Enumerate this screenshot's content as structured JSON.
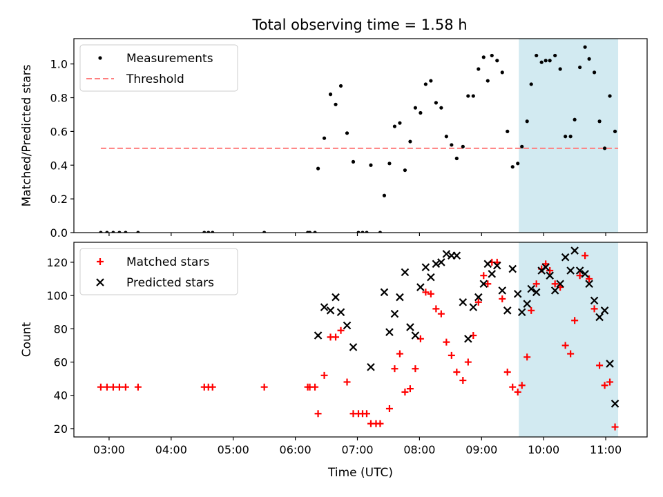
{
  "figure": {
    "title": "Total observing time = 1.58 h"
  },
  "chart_data": [
    {
      "type": "scatter",
      "ylabel": "Matched/Predicted stars",
      "xlim": [
        "02:26",
        "11:40"
      ],
      "ylim": [
        0,
        1.15
      ],
      "xticks": [
        "03:00",
        "04:00",
        "05:00",
        "06:00",
        "07:00",
        "08:00",
        "09:00",
        "10:00",
        "11:00"
      ],
      "yticks": [
        "0.0",
        "0.2",
        "0.4",
        "0.6",
        "0.8",
        "1.0"
      ],
      "legend": {
        "position": "top-left",
        "entries": [
          "Measurements",
          "Threshold"
        ]
      },
      "shaded_interval": {
        "from": "09:36",
        "to": "11:12",
        "color": "#add8e6"
      },
      "threshold": {
        "name": "Threshold",
        "value": 0.5,
        "from": "02:52",
        "to": "11:12",
        "color": "#ff7f7f",
        "style": "dashed"
      },
      "series": [
        {
          "name": "Measurements",
          "color": "#000000",
          "marker": "dot",
          "points": [
            [
              "02:52",
              0
            ],
            [
              "02:58",
              0
            ],
            [
              "03:04",
              0
            ],
            [
              "03:10",
              0
            ],
            [
              "03:16",
              0
            ],
            [
              "03:28",
              0
            ],
            [
              "04:32",
              0
            ],
            [
              "04:36",
              0
            ],
            [
              "04:40",
              0
            ],
            [
              "05:30",
              0
            ],
            [
              "06:12",
              0
            ],
            [
              "06:14",
              0
            ],
            [
              "06:19",
              0
            ],
            [
              "06:22",
              0.38
            ],
            [
              "06:28",
              0.56
            ],
            [
              "06:34",
              0.82
            ],
            [
              "06:39",
              0.76
            ],
            [
              "06:44",
              0.87
            ],
            [
              "06:50",
              0.59
            ],
            [
              "06:56",
              0.42
            ],
            [
              "07:01",
              0
            ],
            [
              "07:05",
              0
            ],
            [
              "07:09",
              0
            ],
            [
              "07:13",
              0.4
            ],
            [
              "07:22",
              0
            ],
            [
              "07:26",
              0.22
            ],
            [
              "07:31",
              0.41
            ],
            [
              "07:36",
              0.63
            ],
            [
              "07:41",
              0.65
            ],
            [
              "07:46",
              0.37
            ],
            [
              "07:51",
              0.54
            ],
            [
              "07:56",
              0.74
            ],
            [
              "08:01",
              0.71
            ],
            [
              "08:06",
              0.88
            ],
            [
              "08:11",
              0.9
            ],
            [
              "08:16",
              0.77
            ],
            [
              "08:21",
              0.74
            ],
            [
              "08:26",
              0.57
            ],
            [
              "08:31",
              0.52
            ],
            [
              "08:36",
              0.44
            ],
            [
              "08:42",
              0.51
            ],
            [
              "08:47",
              0.81
            ],
            [
              "08:52",
              0.81
            ],
            [
              "08:57",
              0.97
            ],
            [
              "09:02",
              1.04
            ],
            [
              "09:06",
              0.9
            ],
            [
              "09:10",
              1.05
            ],
            [
              "09:15",
              1.02
            ],
            [
              "09:20",
              0.95
            ],
            [
              "09:25",
              0.6
            ],
            [
              "09:30",
              0.39
            ],
            [
              "09:35",
              0.41
            ],
            [
              "09:39",
              0.51
            ],
            [
              "09:44",
              0.66
            ],
            [
              "09:48",
              0.88
            ],
            [
              "09:53",
              1.05
            ],
            [
              "09:58",
              1.01
            ],
            [
              "10:02",
              1.02
            ],
            [
              "10:06",
              1.02
            ],
            [
              "10:11",
              1.05
            ],
            [
              "10:16",
              0.97
            ],
            [
              "10:21",
              0.57
            ],
            [
              "10:26",
              0.57
            ],
            [
              "10:30",
              0.67
            ],
            [
              "10:35",
              0.98
            ],
            [
              "10:40",
              1.1
            ],
            [
              "10:44",
              1.03
            ],
            [
              "10:49",
              0.95
            ],
            [
              "10:54",
              0.66
            ],
            [
              "10:59",
              0.5
            ],
            [
              "11:04",
              0.81
            ],
            [
              "11:09",
              0.6
            ]
          ]
        }
      ]
    },
    {
      "type": "scatter",
      "xlabel": "Time (UTC)",
      "ylabel": "Count",
      "xlim": [
        "02:26",
        "11:40"
      ],
      "ylim": [
        15,
        132
      ],
      "xticks": [
        "03:00",
        "04:00",
        "05:00",
        "06:00",
        "07:00",
        "08:00",
        "09:00",
        "10:00",
        "11:00"
      ],
      "yticks": [
        "20",
        "40",
        "60",
        "80",
        "100",
        "120"
      ],
      "legend": {
        "position": "top-left",
        "entries": [
          "Matched stars",
          "Predicted stars"
        ]
      },
      "shaded_interval": {
        "from": "09:36",
        "to": "11:12",
        "color": "#add8e6"
      },
      "series": [
        {
          "name": "Matched stars",
          "color": "#ff0000",
          "marker": "plus",
          "points": [
            [
              "02:52",
              45
            ],
            [
              "02:58",
              45
            ],
            [
              "03:04",
              45
            ],
            [
              "03:10",
              45
            ],
            [
              "03:16",
              45
            ],
            [
              "03:28",
              45
            ],
            [
              "04:32",
              45
            ],
            [
              "04:36",
              45
            ],
            [
              "04:40",
              45
            ],
            [
              "05:30",
              45
            ],
            [
              "06:12",
              45
            ],
            [
              "06:14",
              45
            ],
            [
              "06:19",
              45
            ],
            [
              "06:22",
              29
            ],
            [
              "06:28",
              52
            ],
            [
              "06:34",
              75
            ],
            [
              "06:39",
              75
            ],
            [
              "06:44",
              79
            ],
            [
              "06:50",
              48
            ],
            [
              "06:56",
              29
            ],
            [
              "07:01",
              29
            ],
            [
              "07:05",
              29
            ],
            [
              "07:09",
              29
            ],
            [
              "07:13",
              23
            ],
            [
              "07:18",
              23
            ],
            [
              "07:22",
              23
            ],
            [
              "07:31",
              32
            ],
            [
              "07:36",
              56
            ],
            [
              "07:41",
              65
            ],
            [
              "07:46",
              42
            ],
            [
              "07:51",
              44
            ],
            [
              "07:56",
              56
            ],
            [
              "08:01",
              74
            ],
            [
              "08:06",
              102
            ],
            [
              "08:11",
              101
            ],
            [
              "08:16",
              92
            ],
            [
              "08:21",
              89
            ],
            [
              "08:26",
              72
            ],
            [
              "08:31",
              64
            ],
            [
              "08:36",
              54
            ],
            [
              "08:42",
              49
            ],
            [
              "08:47",
              60
            ],
            [
              "08:52",
              76
            ],
            [
              "08:57",
              96
            ],
            [
              "09:02",
              112
            ],
            [
              "09:06",
              107
            ],
            [
              "09:10",
              120
            ],
            [
              "09:15",
              120
            ],
            [
              "09:20",
              98
            ],
            [
              "09:25",
              54
            ],
            [
              "09:30",
              45
            ],
            [
              "09:35",
              42
            ],
            [
              "09:39",
              46
            ],
            [
              "09:44",
              63
            ],
            [
              "09:48",
              91
            ],
            [
              "09:53",
              107
            ],
            [
              "09:58",
              116
            ],
            [
              "10:02",
              119
            ],
            [
              "10:06",
              115
            ],
            [
              "10:11",
              107
            ],
            [
              "10:16",
              105
            ],
            [
              "10:21",
              70
            ],
            [
              "10:26",
              65
            ],
            [
              "10:30",
              85
            ],
            [
              "10:35",
              112
            ],
            [
              "10:40",
              124
            ],
            [
              "10:44",
              110
            ],
            [
              "10:49",
              92
            ],
            [
              "10:54",
              58
            ],
            [
              "10:59",
              46
            ],
            [
              "11:04",
              48
            ],
            [
              "11:09",
              21
            ]
          ]
        },
        {
          "name": "Predicted stars",
          "color": "#000000",
          "marker": "x",
          "points": [
            [
              "06:22",
              76
            ],
            [
              "06:28",
              93
            ],
            [
              "06:34",
              91
            ],
            [
              "06:39",
              99
            ],
            [
              "06:44",
              90
            ],
            [
              "06:50",
              82
            ],
            [
              "06:56",
              69
            ],
            [
              "07:13",
              57
            ],
            [
              "07:26",
              102
            ],
            [
              "07:31",
              78
            ],
            [
              "07:36",
              89
            ],
            [
              "07:41",
              99
            ],
            [
              "07:46",
              114
            ],
            [
              "07:51",
              81
            ],
            [
              "07:56",
              76
            ],
            [
              "08:01",
              105
            ],
            [
              "08:06",
              117
            ],
            [
              "08:11",
              111
            ],
            [
              "08:16",
              119
            ],
            [
              "08:21",
              120
            ],
            [
              "08:26",
              125
            ],
            [
              "08:31",
              124
            ],
            [
              "08:36",
              124
            ],
            [
              "08:42",
              96
            ],
            [
              "08:47",
              74
            ],
            [
              "08:52",
              93
            ],
            [
              "08:57",
              99
            ],
            [
              "09:02",
              107
            ],
            [
              "09:06",
              119
            ],
            [
              "09:10",
              113
            ],
            [
              "09:15",
              118
            ],
            [
              "09:20",
              103
            ],
            [
              "09:25",
              91
            ],
            [
              "09:30",
              116
            ],
            [
              "09:35",
              101
            ],
            [
              "09:39",
              90
            ],
            [
              "09:44",
              95
            ],
            [
              "09:48",
              104
            ],
            [
              "09:53",
              102
            ],
            [
              "09:58",
              115
            ],
            [
              "10:02",
              117
            ],
            [
              "10:06",
              112
            ],
            [
              "10:11",
              103
            ],
            [
              "10:16",
              107
            ],
            [
              "10:21",
              123
            ],
            [
              "10:26",
              115
            ],
            [
              "10:30",
              127
            ],
            [
              "10:35",
              115
            ],
            [
              "10:40",
              113
            ],
            [
              "10:44",
              107
            ],
            [
              "10:49",
              97
            ],
            [
              "10:54",
              87
            ],
            [
              "10:59",
              91
            ],
            [
              "11:04",
              59
            ],
            [
              "11:09",
              35
            ]
          ]
        }
      ]
    }
  ]
}
